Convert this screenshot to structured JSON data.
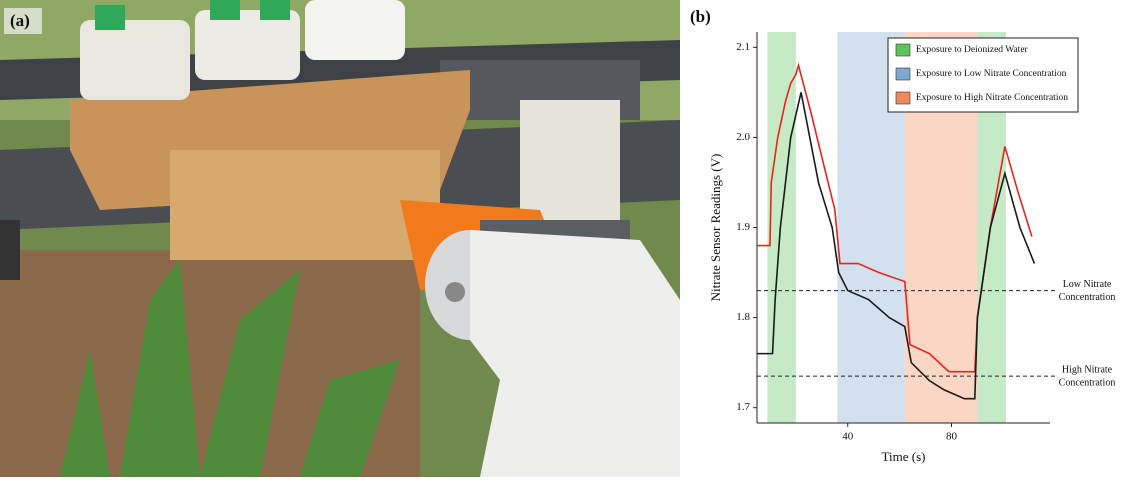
{
  "panels": {
    "a": {
      "label": "(a)"
    },
    "b": {
      "label": "(b)"
    }
  },
  "chart_data": {
    "type": "line",
    "xlabel": "Time (s)",
    "ylabel": "Nitrate Sensor Readings (V)",
    "xlim": [
      5,
      118
    ],
    "ylim": [
      1.683,
      2.117
    ],
    "xticks": [
      40,
      80
    ],
    "yticks": [
      1.7,
      1.8,
      1.9,
      {
        "value": 2,
        "label": "2.0"
      },
      2.1
    ],
    "bands": [
      {
        "name": "Exposure to Deionized Water",
        "color": "#5cc45c",
        "spans": [
          [
            9,
            20
          ],
          [
            90,
            101
          ]
        ]
      },
      {
        "name": "Exposure to Low Nitrate Concentration",
        "color": "#7fa7d3",
        "spans": [
          [
            36,
            62
          ]
        ]
      },
      {
        "name": "Exposure to High Nitrate Concentration",
        "color": "#f0895a",
        "spans": [
          [
            62,
            90
          ]
        ]
      }
    ],
    "hlines": [
      {
        "value": 1.83,
        "label": [
          "Low Nitrate",
          "Concentration"
        ]
      },
      {
        "value": 1.735,
        "label": [
          "High Nitrate",
          "Concentration"
        ]
      }
    ],
    "series": [
      {
        "color": "#e8241c",
        "x": [
          5,
          10,
          10.5,
          13,
          16,
          18,
          20,
          21,
          25.6,
          30.7,
          35,
          37,
          44,
          52,
          62,
          64,
          71.5,
          79,
          89,
          90,
          95,
          100.6,
          105.6,
          111
        ],
        "values": [
          1.88,
          1.88,
          1.95,
          2.0,
          2.04,
          2.06,
          2.07,
          2.08,
          2.03,
          1.97,
          1.92,
          1.86,
          1.86,
          1.85,
          1.84,
          1.77,
          1.76,
          1.74,
          1.74,
          1.8,
          1.9,
          1.99,
          1.94,
          1.89
        ]
      },
      {
        "color": "#1a1a1a",
        "x": [
          5,
          11,
          12,
          14,
          18,
          22,
          28.7,
          34,
          36.5,
          40,
          48,
          56,
          62,
          64.5,
          71.5,
          77,
          85,
          89,
          90,
          95,
          100.6,
          106.4,
          112
        ],
        "values": [
          1.76,
          1.76,
          1.82,
          1.9,
          2.0,
          2.05,
          1.95,
          1.9,
          1.85,
          1.83,
          1.82,
          1.8,
          1.79,
          1.75,
          1.73,
          1.72,
          1.71,
          1.71,
          1.8,
          1.9,
          1.96,
          1.9,
          1.86
        ]
      }
    ]
  }
}
